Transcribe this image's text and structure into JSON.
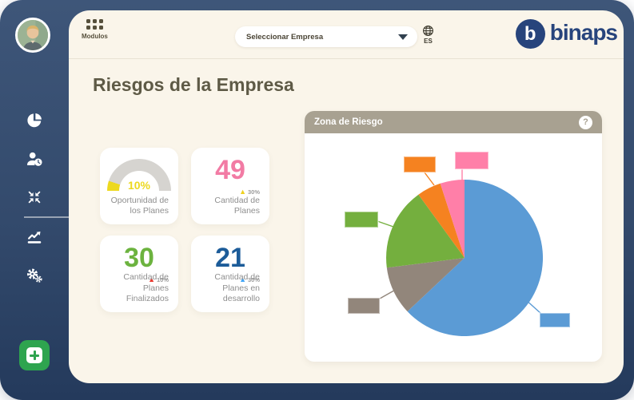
{
  "topbar": {
    "modules_label": "Modulos",
    "company_select": {
      "value": "Seleccionar Empresa"
    },
    "language": "ES",
    "brand": {
      "name": "binaps",
      "initial": "b",
      "color": "#27447C"
    }
  },
  "sidebar": {
    "icons": [
      "pie-chart",
      "user-clock",
      "compress-arrows",
      "line-chart",
      "gears"
    ],
    "add_button": {
      "color": "#2EA44F"
    }
  },
  "icons": {
    "up_triangle": "▲"
  },
  "main": {
    "title": "Riesgos de la Empresa",
    "cards": [
      {
        "type": "gauge",
        "value": "10%",
        "gauge_percent": 10,
        "accent": "#EDD91F",
        "label": "Oportunidad de los Planes"
      },
      {
        "type": "number",
        "value": "49",
        "color": "#F27BA4",
        "delta": "30%",
        "delta_color": "#EFD11F",
        "label": "Cantidad de Planes"
      },
      {
        "type": "number",
        "value": "30",
        "color": "#6CB33F",
        "delta": "10%",
        "delta_color": "#E8392F",
        "label": "Cantidad de Planes Finalizados"
      },
      {
        "type": "number",
        "value": "21",
        "color": "#1C5C99",
        "delta": "30%",
        "delta_color": "#42A5F5",
        "label": "Cantidad de Planes en desarrollo"
      }
    ],
    "panel": {
      "title": "Zona de Riesgo",
      "help_glyph": "?",
      "header_color": "#A8A191"
    }
  },
  "chart_data": {
    "type": "pie",
    "title": "Zona de Riesgo",
    "start_angle_deg": 0,
    "direction": "clockwise",
    "legend": "none",
    "labels": "colored callout swatches without text",
    "segments": [
      {
        "name": "blue",
        "percent": 63,
        "color": "#5B9BD5"
      },
      {
        "name": "taupe",
        "percent": 10,
        "color": "#92867B"
      },
      {
        "name": "green",
        "percent": 17,
        "color": "#74AF3E"
      },
      {
        "name": "orange",
        "percent": 5,
        "color": "#F58220"
      },
      {
        "name": "pink",
        "percent": 5,
        "color": "#FF7FA8"
      }
    ]
  }
}
